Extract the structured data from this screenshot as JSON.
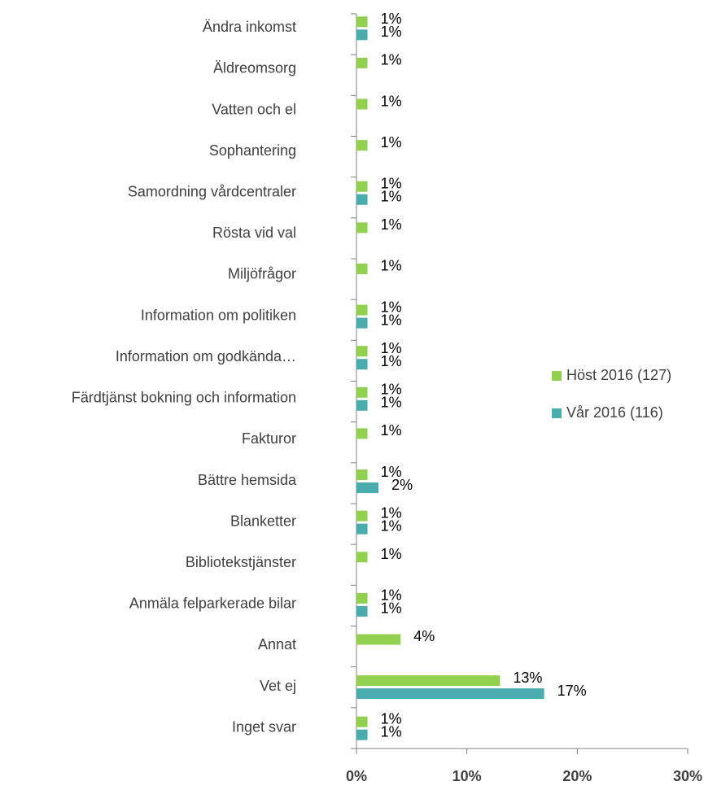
{
  "chart_data": {
    "type": "bar",
    "orientation": "horizontal",
    "categories": [
      "Ändra inkomst",
      "Äldreomsorg",
      "Vatten och el",
      "Sophantering",
      "Samordning vårdcentraler",
      "Rösta vid val",
      "Miljöfrågor",
      "Information om politiken",
      "Information om godkända…",
      "Färdtjänst bokning och information",
      "Fakturor",
      "Bättre hemsida",
      "Blanketter",
      "Bibliotekstjänster",
      "Anmäla felparkerade bilar",
      "Annat",
      "Vet ej",
      "Inget svar"
    ],
    "series": [
      {
        "name": "Höst 2016 (127)",
        "color": "#92d050",
        "values": [
          1,
          1,
          1,
          1,
          1,
          1,
          1,
          1,
          1,
          1,
          1,
          1,
          1,
          1,
          1,
          4,
          13,
          1
        ],
        "value_labels": [
          "1%",
          "1%",
          "1%",
          "1%",
          "1%",
          "1%",
          "1%",
          "1%",
          "1%",
          "1%",
          "1%",
          "1%",
          "1%",
          "1%",
          "1%",
          "4%",
          "13%",
          "1%"
        ]
      },
      {
        "name": "Vår 2016 (116)",
        "color": "#4bacb0",
        "values": [
          1,
          null,
          null,
          null,
          1,
          null,
          null,
          1,
          1,
          1,
          null,
          2,
          1,
          null,
          1,
          null,
          17,
          1
        ],
        "value_labels": [
          "1%",
          null,
          null,
          null,
          "1%",
          null,
          null,
          "1%",
          "1%",
          "1%",
          null,
          "2%",
          "1%",
          null,
          "1%",
          null,
          "17%",
          "1%"
        ]
      }
    ],
    "xlim": [
      0,
      30
    ],
    "xticks": [
      {
        "value": 0,
        "label": "0%"
      },
      {
        "value": 10,
        "label": "10%"
      },
      {
        "value": 20,
        "label": "20%"
      },
      {
        "value": 30,
        "label": "30%"
      }
    ],
    "legend": "right"
  }
}
